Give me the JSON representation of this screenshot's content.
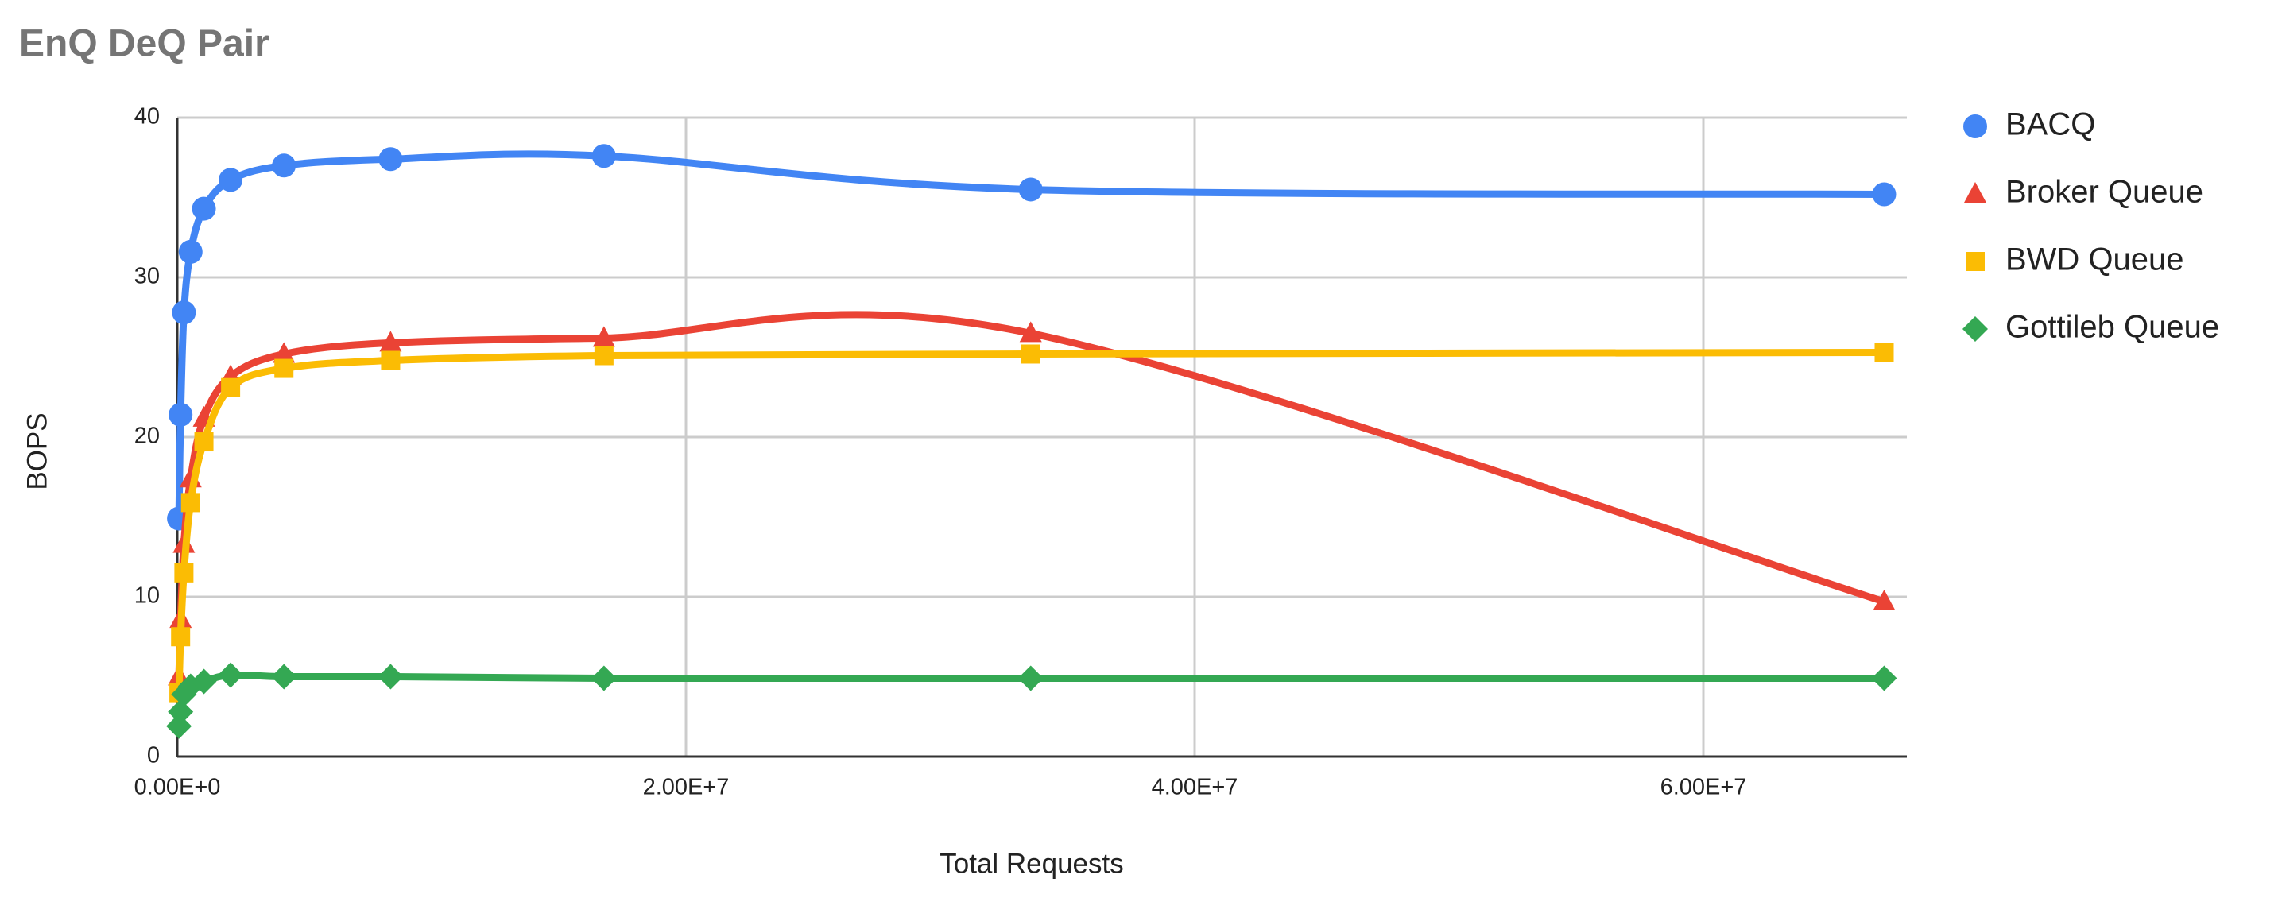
{
  "chart_data": {
    "type": "line",
    "title": "EnQ DeQ Pair",
    "x_label": "Total Requests",
    "y_label": "BOPS",
    "x": [
      65536,
      131072,
      262144,
      524288,
      1048576,
      2097152,
      4194304,
      8388608,
      16777216,
      33554432,
      67108864
    ],
    "series": [
      {
        "name": "BACQ",
        "color": "#4285f4",
        "marker": "circle",
        "values": [
          14.9,
          21.4,
          27.8,
          31.6,
          34.3,
          36.1,
          37.0,
          37.4,
          37.6,
          35.5,
          35.2
        ]
      },
      {
        "name": "Broker Queue",
        "color": "#ea4335",
        "marker": "triangle",
        "values": [
          5.0,
          8.6,
          13.3,
          17.4,
          21.2,
          23.8,
          25.2,
          25.9,
          26.2,
          26.5,
          9.7
        ]
      },
      {
        "name": "BWD Queue",
        "color": "#fbbc04",
        "marker": "square",
        "values": [
          4.0,
          7.5,
          11.5,
          15.9,
          19.7,
          23.1,
          24.3,
          24.8,
          25.1,
          25.2,
          25.3
        ]
      },
      {
        "name": "Gottileb Queue",
        "color": "#34a853",
        "marker": "diamond",
        "values": [
          1.9,
          2.8,
          3.9,
          4.4,
          4.7,
          5.1,
          5.0,
          5.0,
          4.9,
          4.9,
          4.9
        ]
      }
    ],
    "xlim": [
      0,
      68000000
    ],
    "xticks": [
      {
        "value": 0,
        "label": "0.00E+0"
      },
      {
        "value": 20000000,
        "label": "2.00E+7"
      },
      {
        "value": 40000000,
        "label": "4.00E+7"
      },
      {
        "value": 60000000,
        "label": "6.00E+7"
      }
    ],
    "ylim": [
      0,
      40
    ],
    "yticks": [
      0,
      10,
      20,
      30,
      40
    ],
    "grid": true,
    "legend": "right"
  }
}
